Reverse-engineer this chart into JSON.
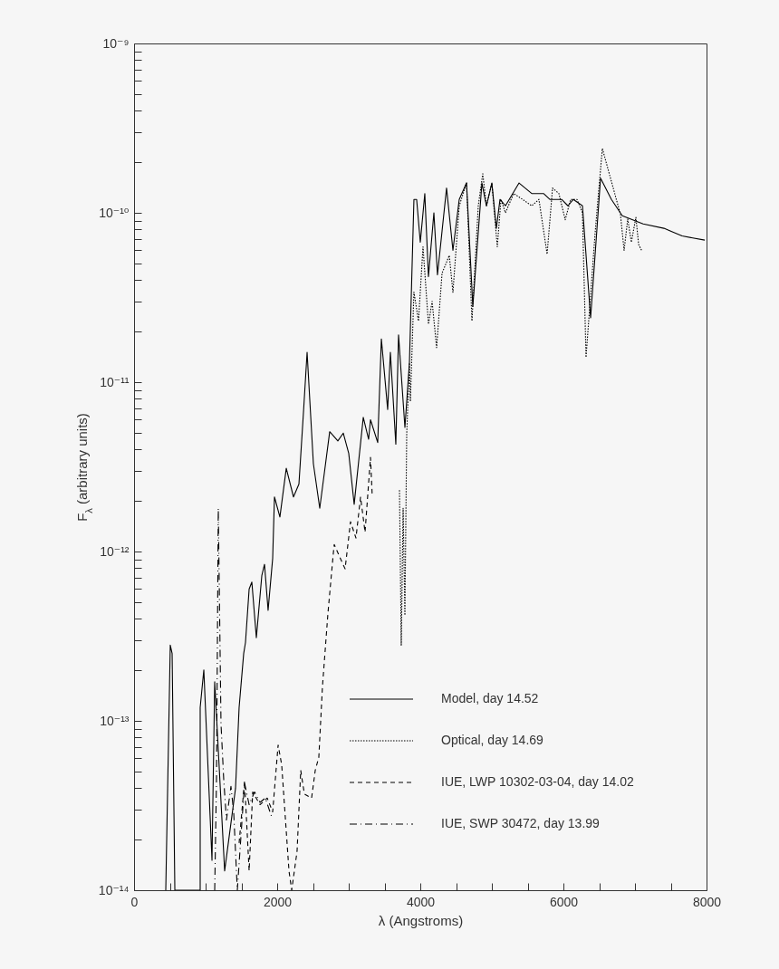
{
  "chart_data": {
    "type": "line",
    "xlabel": "λ (Angstroms)",
    "ylabel": "F$_{λ}$ (arbitrary units)",
    "log": "y",
    "grid": false,
    "legend": "bottom right",
    "xlim": [
      0,
      8000
    ],
    "xticks": [
      0,
      {
        "value": 500,
        "label": null
      },
      {
        "value": 1000,
        "label": null
      },
      {
        "value": 1500,
        "label": null
      },
      2000,
      {
        "value": 2500,
        "label": null
      },
      {
        "value": 3000,
        "label": null
      },
      {
        "value": 3500,
        "label": null
      },
      4000,
      {
        "value": 4500,
        "label": null
      },
      {
        "value": 5000,
        "label": null
      },
      {
        "value": 5500,
        "label": null
      },
      6000,
      {
        "value": 6500,
        "label": null
      },
      {
        "value": 7000,
        "label": null
      },
      {
        "value": 7500,
        "label": null
      },
      8000
    ],
    "ylim": [
      1e-14,
      1e-09
    ],
    "yticks": [
      {
        "value": 1e-14,
        "label": "10⁻¹⁴"
      },
      {
        "value": 2e-14,
        "label": null
      },
      {
        "value": 3e-14,
        "label": null
      },
      {
        "value": 4e-14,
        "label": null
      },
      {
        "value": 5e-14,
        "label": null
      },
      {
        "value": 6e-14,
        "label": null
      },
      {
        "value": 7e-14,
        "label": null
      },
      {
        "value": 8e-14,
        "label": null
      },
      {
        "value": 9e-14,
        "label": null
      },
      {
        "value": 1e-13,
        "label": "10⁻¹³"
      },
      {
        "value": 2e-13,
        "label": null
      },
      {
        "value": 3e-13,
        "label": null
      },
      {
        "value": 4e-13,
        "label": null
      },
      {
        "value": 5e-13,
        "label": null
      },
      {
        "value": 6e-13,
        "label": null
      },
      {
        "value": 7e-13,
        "label": null
      },
      {
        "value": 8e-13,
        "label": null
      },
      {
        "value": 9e-13,
        "label": null
      },
      {
        "value": 1e-12,
        "label": "10⁻¹²"
      },
      {
        "value": 2e-12,
        "label": null
      },
      {
        "value": 3e-12,
        "label": null
      },
      {
        "value": 4e-12,
        "label": null
      },
      {
        "value": 5e-12,
        "label": null
      },
      {
        "value": 6e-12,
        "label": null
      },
      {
        "value": 7e-12,
        "label": null
      },
      {
        "value": 8e-12,
        "label": null
      },
      {
        "value": 9e-12,
        "label": null
      },
      {
        "value": 1e-11,
        "label": "10⁻¹¹"
      },
      {
        "value": 2e-11,
        "label": null
      },
      {
        "value": 3e-11,
        "label": null
      },
      {
        "value": 4e-11,
        "label": null
      },
      {
        "value": 5e-11,
        "label": null
      },
      {
        "value": 6e-11,
        "label": null
      },
      {
        "value": 7e-11,
        "label": null
      },
      {
        "value": 8e-11,
        "label": null
      },
      {
        "value": 9e-11,
        "label": null
      },
      {
        "value": 1e-10,
        "label": "10⁻¹⁰"
      },
      {
        "value": 2e-10,
        "label": null
      },
      {
        "value": 3e-10,
        "label": null
      },
      {
        "value": 4e-10,
        "label": null
      },
      {
        "value": 5e-10,
        "label": null
      },
      {
        "value": 6e-10,
        "label": null
      },
      {
        "value": 7e-10,
        "label": null
      },
      {
        "value": 8e-10,
        "label": null
      },
      {
        "value": 9e-10,
        "label": null
      },
      {
        "value": 1e-09,
        "label": "10⁻⁹"
      }
    ],
    "series": [
      {
        "name": "Model, day 14.52",
        "color": "#000000",
        "line_style": "solid",
        "x": [
          443,
          506,
          532,
          570,
          924,
          924,
          975,
          1089,
          1127,
          1266,
          1418,
          1468,
          1532,
          1557,
          1608,
          1646,
          1709,
          1785,
          1823,
          1873,
          1937,
          1962,
          2038,
          2127,
          2228,
          2304,
          2367,
          2418,
          2506,
          2595,
          2734,
          2848,
          2924,
          3000,
          3076,
          3203,
          3278,
          3304,
          3405,
          3456,
          3544,
          3582,
          3658,
          3696,
          3785,
          3848,
          3911,
          3949,
          4000,
          4063,
          4114,
          4190,
          4240,
          4367,
          4456,
          4544,
          4646,
          4734,
          4861,
          4924,
          5000,
          5063,
          5114,
          5190,
          5380,
          5557,
          5722,
          5810,
          5975,
          6063,
          6139,
          6266,
          6380,
          6519,
          6671,
          6823,
          7114,
          7405,
          7658,
          7975
        ],
        "values": [
          1e-14,
          2.8e-13,
          2.5e-13,
          1e-14,
          1e-14,
          1.2e-13,
          2e-13,
          1.5e-14,
          1.7e-13,
          1.3e-14,
          4e-14,
          1.2e-13,
          2.5e-13,
          2.9e-13,
          6e-13,
          6.6e-13,
          3.1e-13,
          7.2e-13,
          8.4e-13,
          4.5e-13,
          9.1e-13,
          2.1e-12,
          1.6e-12,
          3.1e-12,
          2.1e-12,
          2.5e-12,
          6.6e-12,
          1.5e-11,
          3.3e-12,
          1.8e-12,
          5.1e-12,
          4.5e-12,
          5e-12,
          3.8e-12,
          1.9e-12,
          6.2e-12,
          4.6e-12,
          6e-12,
          4.4e-12,
          1.8e-11,
          6.9e-12,
          1.5e-11,
          4.3e-12,
          1.9e-11,
          5.4e-12,
          1.3e-11,
          1.2e-10,
          1.2e-10,
          6.7e-11,
          1.3e-10,
          4.2e-11,
          1e-10,
          4.3e-11,
          1.4e-10,
          6e-11,
          1.2e-10,
          1.5e-10,
          2.8e-11,
          1.5e-10,
          1.1e-10,
          1.5e-10,
          8.1e-11,
          1.2e-10,
          1.1e-10,
          1.5e-10,
          1.3e-10,
          1.3e-10,
          1.2e-10,
          1.2e-10,
          1.1e-10,
          1.2e-10,
          1.1e-10,
          2.4e-11,
          1.6e-10,
          1.2e-10,
          9.6e-11,
          8.6e-11,
          8.1e-11,
          7.3e-11,
          6.9e-11
        ]
      },
      {
        "name": "Optical, day 14.69",
        "color": "#000000",
        "line_style": "dotted",
        "x": [
          3709,
          3734,
          3760,
          3785,
          3810,
          3848,
          3861,
          3911,
          3975,
          4038,
          4114,
          4165,
          4228,
          4304,
          4405,
          4456,
          4544,
          4646,
          4722,
          4810,
          4873,
          4924,
          5000,
          5076,
          5127,
          5190,
          5304,
          5430,
          5557,
          5658,
          5772,
          5848,
          5937,
          6025,
          6101,
          6190,
          6266,
          6316,
          6443,
          6544,
          6696,
          6797,
          6848,
          6899,
          6949,
          7013,
          7051,
          7101
        ],
        "values": [
          2.3e-12,
          2.8e-13,
          1.8e-12,
          4.2e-13,
          4.9e-12,
          1.3e-11,
          7.7e-12,
          3.4e-11,
          2.3e-11,
          6.3e-11,
          2.2e-11,
          3e-11,
          1.6e-11,
          4.4e-11,
          5.6e-11,
          3.4e-11,
          1.1e-10,
          1.5e-10,
          2.3e-11,
          1.1e-10,
          1.7e-10,
          1.1e-10,
          1.5e-10,
          6.3e-11,
          1.2e-10,
          1e-10,
          1.3e-10,
          1.2e-10,
          1.1e-10,
          1.2e-10,
          5.7e-11,
          1.4e-10,
          1.3e-10,
          9.1e-11,
          1.2e-10,
          1.2e-10,
          1e-10,
          1.4e-11,
          7.6e-11,
          2.4e-10,
          1.4e-10,
          9.8e-11,
          6e-11,
          9.2e-11,
          6.7e-11,
          9.4e-11,
          6.5e-11,
          5.9e-11
        ]
      },
      {
        "name": "IUE, LWP 10302-03-04, day 14.02",
        "color": "#000000",
        "line_style": "dashed",
        "x": [
          1468,
          1544,
          1608,
          1658,
          1760,
          1861,
          1937,
          2013,
          2063,
          2165,
          2203,
          2278,
          2329,
          2380,
          2481,
          2532,
          2582,
          2633,
          2709,
          2785,
          2797,
          2873,
          2949,
          3025,
          3101,
          3165,
          3228,
          3304,
          3329
        ],
        "values": [
          1.9e-14,
          4.4e-14,
          1.3e-14,
          3.8e-14,
          3.2e-14,
          3.5e-14,
          2.9e-14,
          7.2e-14,
          5.5e-14,
          1.3e-14,
          1e-14,
          1.7e-14,
          5.1e-14,
          3.7e-14,
          3.5e-14,
          5.1e-14,
          6.1e-14,
          1.6e-13,
          4.3e-13,
          9.8e-13,
          1.1e-12,
          9.3e-13,
          7.9e-13,
          1.5e-12,
          1.2e-12,
          2.1e-12,
          1.3e-12,
          3.6e-12,
          2.1e-12
        ]
      },
      {
        "name": "IUE, SWP 30472, day 13.99",
        "color": "#000000",
        "line_style": "dashdot",
        "x": [
          1127,
          1152,
          1177,
          1215,
          1253,
          1291,
          1354,
          1392,
          1443,
          1544,
          1608,
          1684,
          1760,
          1835,
          1924
        ],
        "values": [
          1e-14,
          4.5e-14,
          1.8e-12,
          9.6e-14,
          4.5e-14,
          2.6e-14,
          4.1e-14,
          2.9e-14,
          1e-14,
          4.3e-14,
          3.2e-14,
          3.8e-14,
          3.3e-14,
          3.5e-14,
          2.7e-14
        ]
      }
    ]
  }
}
